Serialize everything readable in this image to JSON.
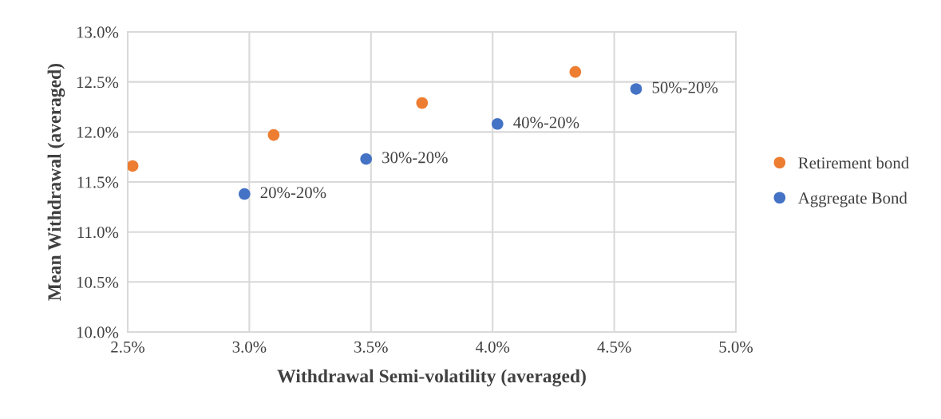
{
  "chart_data": {
    "type": "scatter",
    "xlabel": "Withdrawal Semi-volatility (averaged)",
    "ylabel": "Mean Withdrawal (averaged)",
    "series": [
      {
        "name": "Retirement bond",
        "color": "#ed7d31",
        "x": [
          2.52,
          3.1,
          3.71,
          4.34
        ],
        "values": [
          11.66,
          11.97,
          12.29,
          12.6
        ]
      },
      {
        "name": "Aggregate Bond",
        "color": "#4472c4",
        "x": [
          2.98,
          3.48,
          4.02,
          4.59
        ],
        "values": [
          11.38,
          11.73,
          12.08,
          12.43
        ]
      }
    ],
    "annotations": [
      {
        "text": "20%-20%",
        "x": 2.98,
        "y": 11.38
      },
      {
        "text": "30%-20%",
        "x": 3.48,
        "y": 11.73
      },
      {
        "text": "40%-20%",
        "x": 4.02,
        "y": 12.08
      },
      {
        "text": "50%-20%",
        "x": 4.59,
        "y": 12.43
      }
    ],
    "xlim": [
      2.5,
      5.0
    ],
    "xticks": [
      {
        "value": 2.5,
        "label": "2.5%"
      },
      {
        "value": 3.0,
        "label": "3.0%"
      },
      {
        "value": 3.5,
        "label": "3.5%"
      },
      {
        "value": 4.0,
        "label": "4.0%"
      },
      {
        "value": 4.5,
        "label": "4.5%"
      },
      {
        "value": 5.0,
        "label": "5.0%"
      }
    ],
    "ylim": [
      10.0,
      13.0
    ],
    "yticks": [
      {
        "value": 10.0,
        "label": "10.0%"
      },
      {
        "value": 10.5,
        "label": "10.5%"
      },
      {
        "value": 11.0,
        "label": "11.0%"
      },
      {
        "value": 11.5,
        "label": "11.5%"
      },
      {
        "value": 12.0,
        "label": "12.0%"
      },
      {
        "value": 12.5,
        "label": "12.5%"
      },
      {
        "value": 13.0,
        "label": "13.0%"
      }
    ],
    "grid": true,
    "legend": "right",
    "marker": "circle"
  }
}
